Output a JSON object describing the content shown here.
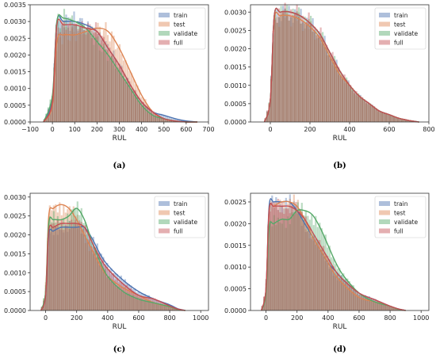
{
  "colors": {
    "train": "#4c72b0",
    "test": "#dd8452",
    "validate": "#55a868",
    "full": "#c44e52"
  },
  "chart_data": [
    {
      "id": "a",
      "caption": "(a)",
      "type": "area",
      "xlabel": "RUL",
      "xlim": [
        -100,
        700
      ],
      "ylim": [
        0,
        0.0035
      ],
      "xticks": [
        "−100",
        "0",
        "100",
        "200",
        "300",
        "400",
        "500",
        "600",
        "700"
      ],
      "xtick_values": [
        -100,
        0,
        100,
        200,
        300,
        400,
        500,
        600,
        700
      ],
      "yticks": [
        "0.0000",
        "0.0005",
        "0.0010",
        "0.0015",
        "0.0020",
        "0.0025",
        "0.0030",
        "0.0035"
      ],
      "ytick_values": [
        0,
        0.0005,
        0.001,
        0.0015,
        0.002,
        0.0025,
        0.003,
        0.0035
      ],
      "legend": [
        "train",
        "test",
        "validate",
        "full"
      ],
      "legend_position": "top-right",
      "x": [
        -40,
        0,
        20,
        50,
        100,
        150,
        200,
        250,
        300,
        350,
        400,
        450,
        500,
        550,
        600,
        650
      ],
      "series": [
        {
          "name": "train",
          "values": [
            0.0,
            0.0007,
            0.003,
            0.003,
            0.003,
            0.0029,
            0.0027,
            0.0022,
            0.0017,
            0.0011,
            0.0006,
            0.0003,
            0.0002,
            0.0001,
            3e-05,
            0.0
          ]
        },
        {
          "name": "test",
          "values": [
            0.0,
            0.0005,
            0.0024,
            0.0026,
            0.0026,
            0.0027,
            0.0028,
            0.0027,
            0.0022,
            0.0015,
            0.0008,
            0.0003,
            0.0001,
            3e-05,
            0.0,
            0.0
          ]
        },
        {
          "name": "validate",
          "values": [
            0.0,
            0.0008,
            0.003,
            0.0031,
            0.003,
            0.0028,
            0.0024,
            0.002,
            0.0015,
            0.001,
            0.0005,
            0.0002,
            0.0001,
            3e-05,
            0.0,
            0.0
          ]
        },
        {
          "name": "full",
          "values": [
            0.0,
            0.0006,
            0.0029,
            0.0029,
            0.0029,
            0.0028,
            0.0027,
            0.0022,
            0.0017,
            0.0011,
            0.0006,
            0.0003,
            0.0001,
            3e-05,
            0.0,
            0.0
          ]
        }
      ]
    },
    {
      "id": "b",
      "caption": "(b)",
      "type": "area",
      "xlabel": "RUL",
      "xlim": [
        -100,
        800
      ],
      "ylim": [
        0,
        0.0032
      ],
      "xticks": [
        "0",
        "200",
        "400",
        "600",
        "800"
      ],
      "xtick_values": [
        0,
        200,
        400,
        600,
        800
      ],
      "yticks": [
        "0.0000",
        "0.0005",
        "0.0010",
        "0.0015",
        "0.0020",
        "0.0025",
        "0.0030"
      ],
      "ytick_values": [
        0,
        0.0005,
        0.001,
        0.0015,
        0.002,
        0.0025,
        0.003
      ],
      "legend": [
        "train",
        "test",
        "validate",
        "full"
      ],
      "legend_position": "top-right",
      "x": [
        -30,
        0,
        20,
        50,
        100,
        150,
        200,
        250,
        300,
        350,
        400,
        450,
        500,
        550,
        600,
        650,
        700,
        750
      ],
      "series": [
        {
          "name": "train",
          "values": [
            0.0,
            0.0006,
            0.0029,
            0.003,
            0.003,
            0.0029,
            0.0027,
            0.0024,
            0.0019,
            0.0014,
            0.001,
            0.0007,
            0.0005,
            0.0003,
            0.0002,
            0.0001,
            4e-05,
            0.0
          ]
        },
        {
          "name": "test",
          "values": [
            0.0,
            0.0006,
            0.0028,
            0.0029,
            0.0029,
            0.0028,
            0.0026,
            0.0023,
            0.0018,
            0.0013,
            0.001,
            0.0007,
            0.0005,
            0.0003,
            0.0002,
            0.0001,
            4e-05,
            0.0
          ]
        },
        {
          "name": "validate",
          "values": [
            0.0,
            0.0006,
            0.0029,
            0.003,
            0.003,
            0.0029,
            0.0027,
            0.0024,
            0.0019,
            0.0014,
            0.001,
            0.0007,
            0.0005,
            0.0003,
            0.0002,
            0.0001,
            4e-05,
            0.0
          ]
        },
        {
          "name": "full",
          "values": [
            0.0,
            0.0006,
            0.0029,
            0.003,
            0.003,
            0.0029,
            0.0027,
            0.0024,
            0.0019,
            0.0014,
            0.001,
            0.0007,
            0.0005,
            0.0003,
            0.0002,
            0.0001,
            4e-05,
            0.0
          ]
        }
      ]
    },
    {
      "id": "c",
      "caption": "(c)",
      "type": "area",
      "xlabel": "RUL",
      "xlim": [
        -100,
        1050
      ],
      "ylim": [
        0,
        0.0031
      ],
      "xticks": [
        "0",
        "200",
        "400",
        "600",
        "800",
        "1000"
      ],
      "xtick_values": [
        0,
        200,
        400,
        600,
        800,
        1000
      ],
      "yticks": [
        "0.0000",
        "0.0005",
        "0.0010",
        "0.0015",
        "0.0020",
        "0.0025",
        "0.0030"
      ],
      "ytick_values": [
        0,
        0.0005,
        0.001,
        0.0015,
        0.002,
        0.0025,
        0.003
      ],
      "legend": [
        "train",
        "test",
        "validate",
        "full"
      ],
      "legend_position": "top-right",
      "x": [
        -30,
        0,
        20,
        50,
        100,
        150,
        200,
        250,
        300,
        350,
        400,
        500,
        600,
        700,
        800,
        850,
        900
      ],
      "series": [
        {
          "name": "train",
          "values": [
            0.0,
            0.0004,
            0.002,
            0.0021,
            0.0022,
            0.0022,
            0.0022,
            0.0022,
            0.0019,
            0.0015,
            0.0012,
            0.0008,
            0.0005,
            0.0003,
            0.00015,
            5e-05,
            0.0
          ]
        },
        {
          "name": "test",
          "values": [
            0.0,
            0.0005,
            0.0025,
            0.0027,
            0.0028,
            0.0027,
            0.0024,
            0.002,
            0.0016,
            0.0012,
            0.0009,
            0.0006,
            0.0004,
            0.0002,
            0.0001,
            3e-05,
            0.0
          ]
        },
        {
          "name": "validate",
          "values": [
            0.0,
            0.0005,
            0.0023,
            0.0024,
            0.0024,
            0.0025,
            0.0027,
            0.0024,
            0.0018,
            0.0013,
            0.0009,
            0.0005,
            0.0003,
            0.0002,
            0.0001,
            3e-05,
            0.0
          ]
        },
        {
          "name": "full",
          "values": [
            0.0,
            0.0004,
            0.0021,
            0.0022,
            0.0023,
            0.0023,
            0.0023,
            0.0022,
            0.0018,
            0.0014,
            0.0011,
            0.0007,
            0.0004,
            0.0003,
            0.00012,
            4e-05,
            0.0
          ]
        }
      ]
    },
    {
      "id": "d",
      "caption": "(d)",
      "type": "area",
      "xlabel": "RUL",
      "xlim": [
        -100,
        1050
      ],
      "ylim": [
        0,
        0.0027
      ],
      "xticks": [
        "0",
        "200",
        "400",
        "600",
        "800",
        "1000"
      ],
      "xtick_values": [
        0,
        200,
        400,
        600,
        800,
        1000
      ],
      "yticks": [
        "0.0000",
        "0.0005",
        "0.0010",
        "0.0015",
        "0.0020",
        "0.0025"
      ],
      "ytick_values": [
        0,
        0.0005,
        0.001,
        0.0015,
        0.002,
        0.0025
      ],
      "legend": [
        "train",
        "test",
        "validate",
        "full"
      ],
      "legend_position": "top-right",
      "x": [
        -30,
        0,
        20,
        50,
        100,
        150,
        200,
        250,
        300,
        350,
        400,
        450,
        500,
        600,
        700,
        800,
        850,
        900
      ],
      "series": [
        {
          "name": "train",
          "values": [
            0.0,
            0.0005,
            0.0024,
            0.0025,
            0.0025,
            0.0025,
            0.0023,
            0.002,
            0.0017,
            0.0014,
            0.0011,
            0.0009,
            0.0007,
            0.0004,
            0.00025,
            0.0001,
            4e-05,
            0.0
          ]
        },
        {
          "name": "test",
          "values": [
            0.0,
            0.0005,
            0.0023,
            0.0024,
            0.0025,
            0.0025,
            0.0024,
            0.0021,
            0.0017,
            0.0014,
            0.0011,
            0.0008,
            0.0006,
            0.0003,
            0.0002,
            0.0001,
            3e-05,
            0.0
          ]
        },
        {
          "name": "validate",
          "values": [
            0.0,
            0.0004,
            0.0019,
            0.002,
            0.0021,
            0.0021,
            0.0023,
            0.0023,
            0.0022,
            0.0019,
            0.0015,
            0.0011,
            0.0008,
            0.0004,
            0.0002,
            0.0001,
            3e-05,
            0.0
          ]
        },
        {
          "name": "full",
          "values": [
            0.0,
            0.0005,
            0.0023,
            0.0024,
            0.0024,
            0.0024,
            0.0023,
            0.0021,
            0.0018,
            0.0015,
            0.0012,
            0.0009,
            0.0007,
            0.0004,
            0.00025,
            0.0001,
            4e-05,
            0.0
          ]
        }
      ]
    }
  ]
}
